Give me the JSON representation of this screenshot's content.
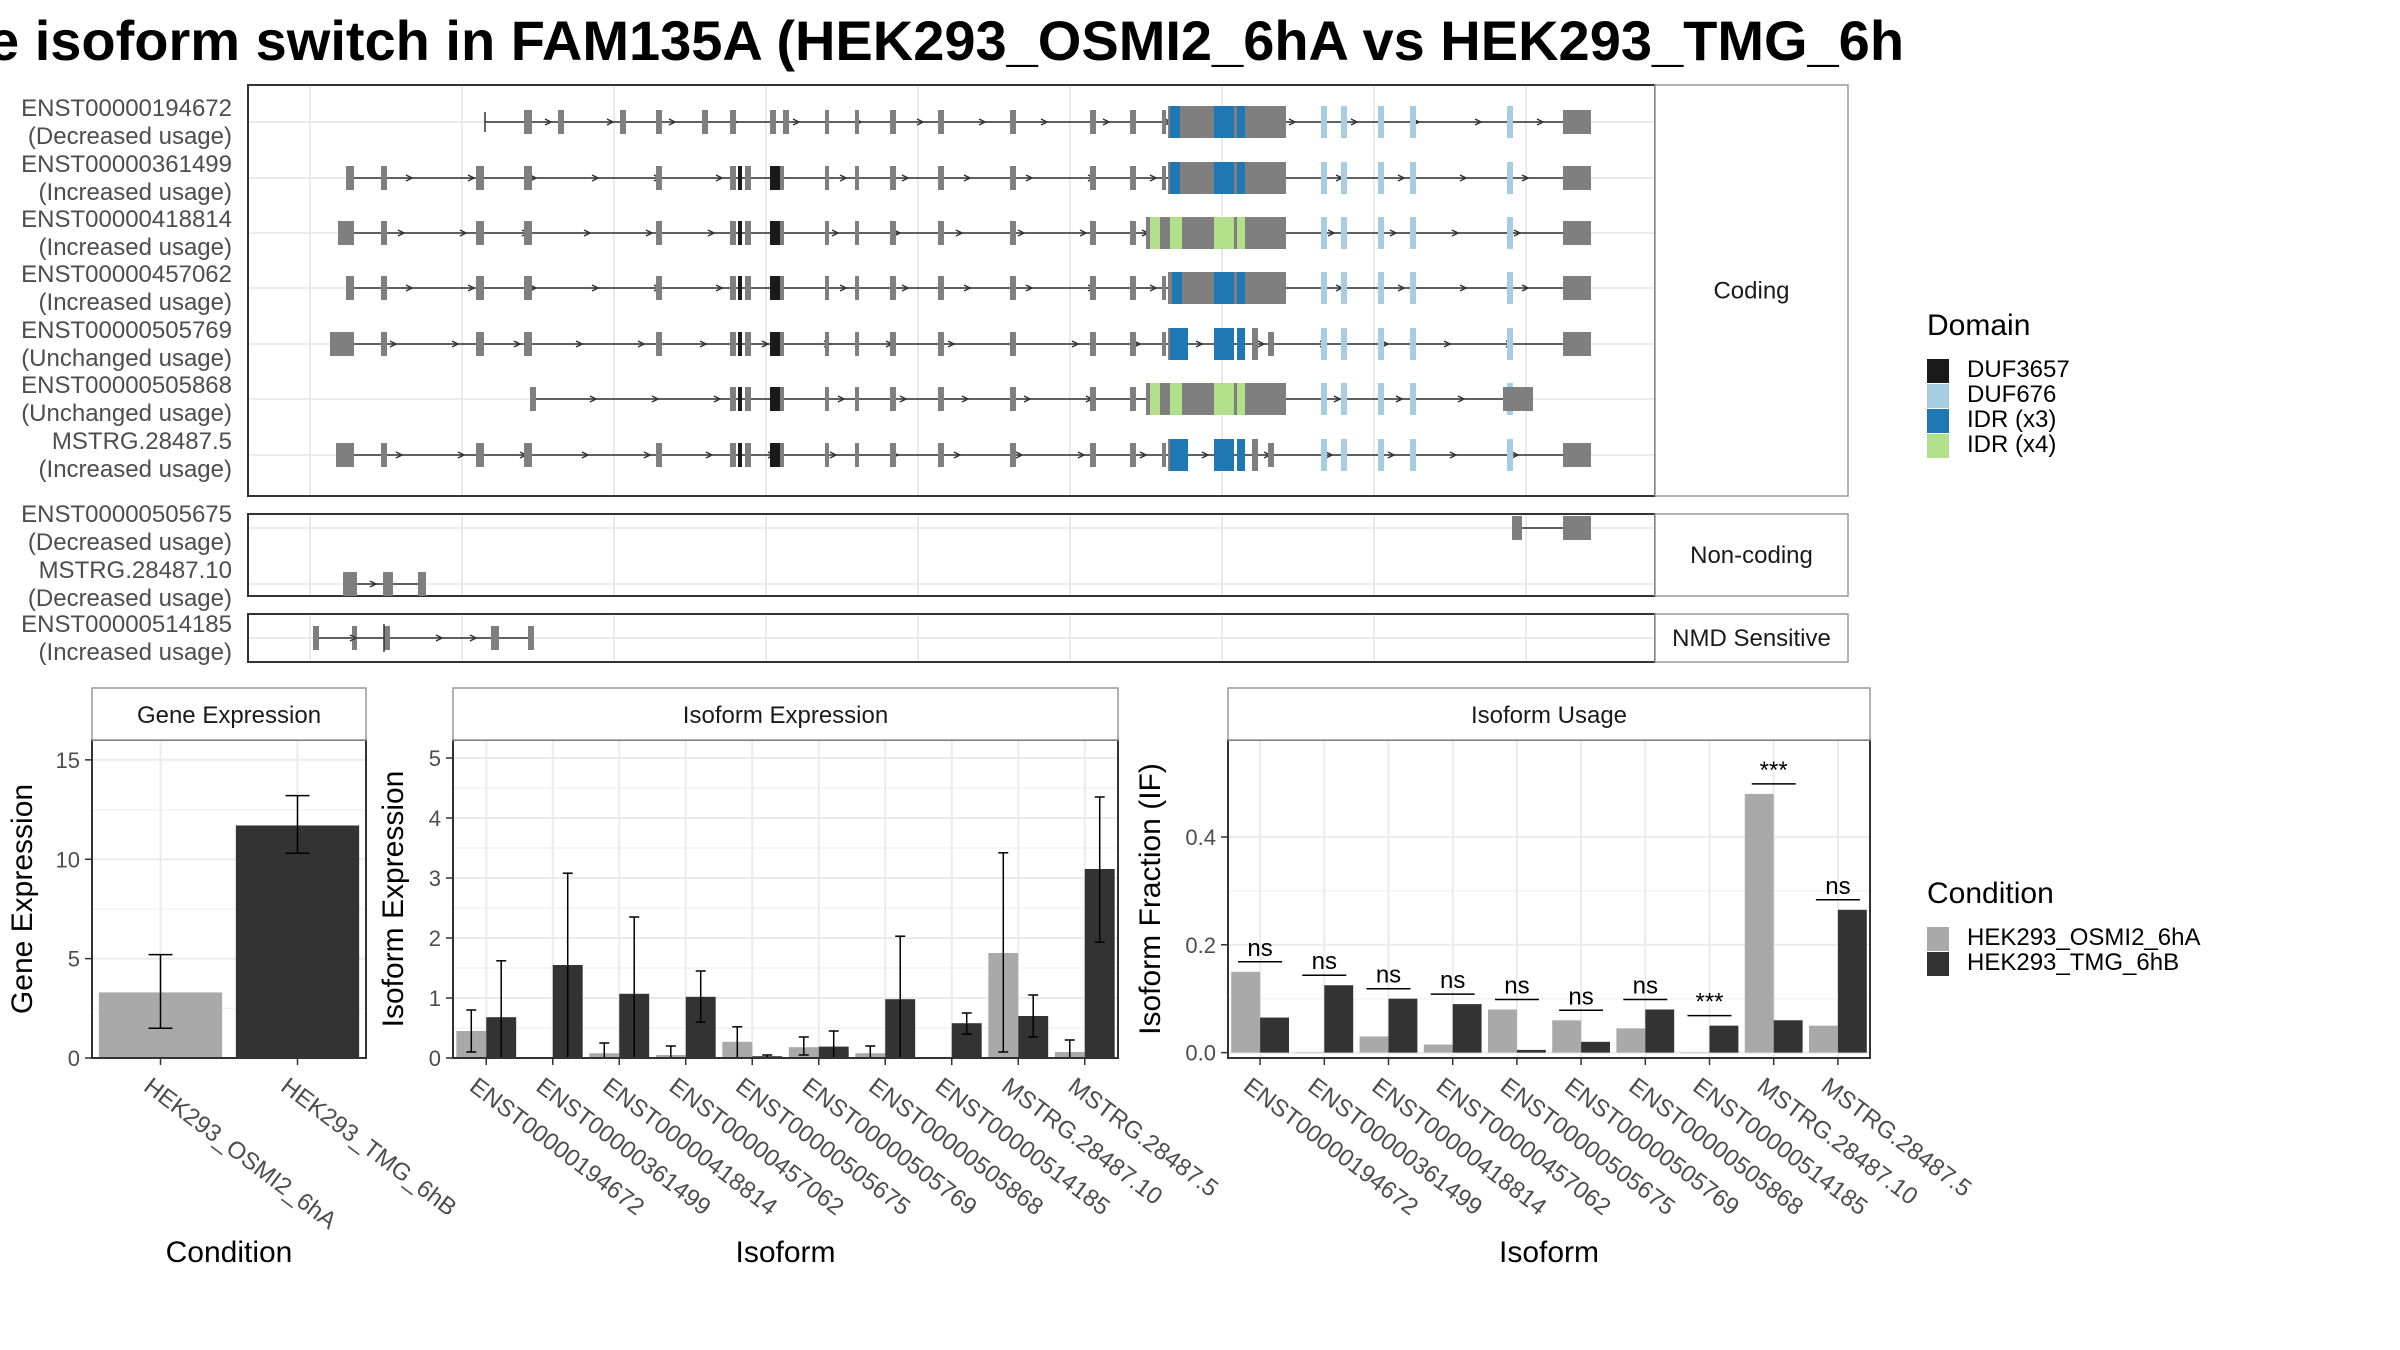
{
  "title": "e isoform switch in FAM135A (HEK293_OSMI2_6hA vs HEK293_TMG_6h",
  "colors": {
    "exon": "#7f7f7f",
    "DUF3657": "#1a1a1a",
    "DUF676": "#a6cee3",
    "IDR (x3)": "#1f78b4",
    "IDR (x4)": "#b2df8a",
    "HEK293_OSMI2_6hA": "#a9a9a9",
    "HEK293_TMG_6hB": "#333333"
  },
  "structure": {
    "panels": [
      {
        "label": "Coding",
        "isoforms": [
          {
            "id": "ENST00000194672",
            "usage": "(Decreased usage)"
          },
          {
            "id": "ENST00000361499",
            "usage": "(Increased usage)"
          },
          {
            "id": "ENST00000418814",
            "usage": "(Increased usage)"
          },
          {
            "id": "ENST00000457062",
            "usage": "(Increased usage)"
          },
          {
            "id": "ENST00000505769",
            "usage": "(Unchanged usage)"
          },
          {
            "id": "ENST00000505868",
            "usage": "(Unchanged usage)"
          },
          {
            "id": "MSTRG.28487.5",
            "usage": "(Increased usage)"
          }
        ]
      },
      {
        "label": "Non-coding",
        "isoforms": [
          {
            "id": "ENST00000505675",
            "usage": "(Decreased usage)"
          },
          {
            "id": "MSTRG.28487.10",
            "usage": "(Decreased usage)"
          }
        ]
      },
      {
        "label": "NMD Sensitive",
        "isoforms": [
          {
            "id": "ENST00000514185",
            "usage": "(Increased usage)"
          }
        ]
      }
    ]
  },
  "legends": {
    "domain": {
      "title": "Domain",
      "items": [
        "DUF3657",
        "DUF676",
        "IDR (x3)",
        "IDR (x4)"
      ]
    },
    "condition": {
      "title": "Condition",
      "items": [
        "HEK293_OSMI2_6hA",
        "HEK293_TMG_6hB"
      ]
    }
  },
  "chart_data": [
    {
      "type": "bar",
      "title": "Gene Expression",
      "xlabel": "Condition",
      "ylabel": "Gene Expression",
      "categories": [
        "HEK293_OSMI2_6hA",
        "HEK293_TMG_6hB"
      ],
      "values": [
        3.3,
        11.7
      ],
      "errors": [
        [
          1.5,
          5.2
        ],
        [
          10.3,
          13.2
        ]
      ],
      "ylim": [
        0,
        16
      ],
      "yticks": [
        0,
        5,
        10,
        15
      ]
    },
    {
      "type": "bar",
      "title": "Isoform Expression",
      "xlabel": "Isoform",
      "ylabel": "Isoform Expression",
      "categories": [
        "ENST00000194672",
        "ENST00000361499",
        "ENST00000418814",
        "ENST00000457062",
        "ENST00000505675",
        "ENST00000505769",
        "ENST00000505868",
        "ENST00000514185",
        "MSTRG.28487.10",
        "MSTRG.28487.5"
      ],
      "series": [
        {
          "name": "HEK293_OSMI2_6hA",
          "values": [
            0.45,
            0.0,
            0.08,
            0.05,
            0.27,
            0.18,
            0.08,
            0.0,
            1.75,
            0.1
          ],
          "errors": [
            [
              0.1,
              0.8
            ],
            [
              0,
              0
            ],
            [
              0,
              0.25
            ],
            [
              0,
              0.2
            ],
            [
              0,
              0.52
            ],
            [
              0.05,
              0.35
            ],
            [
              0,
              0.2
            ],
            [
              0,
              0
            ],
            [
              0.1,
              3.42
            ],
            [
              0,
              0.3
            ]
          ]
        },
        {
          "name": "HEK293_TMG_6hB",
          "values": [
            0.68,
            1.55,
            1.07,
            1.02,
            0.03,
            0.19,
            0.98,
            0.58,
            0.7,
            3.15
          ],
          "errors": [
            [
              0,
              1.62
            ],
            [
              0,
              3.08
            ],
            [
              0,
              2.35
            ],
            [
              0.6,
              1.45
            ],
            [
              0,
              0.05
            ],
            [
              0,
              0.45
            ],
            [
              0,
              2.03
            ],
            [
              0.4,
              0.75
            ],
            [
              0.35,
              1.05
            ],
            [
              1.93,
              4.35
            ]
          ]
        }
      ],
      "ylim": [
        0,
        5.3
      ],
      "yticks": [
        0,
        1,
        2,
        3,
        4,
        5
      ]
    },
    {
      "type": "bar",
      "title": "Isoform Usage",
      "xlabel": "Isoform",
      "ylabel": "Isoform Fraction (IF)",
      "categories": [
        "ENST00000194672",
        "ENST00000361499",
        "ENST00000418814",
        "ENST00000457062",
        "ENST00000505675",
        "ENST00000505769",
        "ENST00000505868",
        "ENST00000514185",
        "MSTRG.28487.10",
        "MSTRG.28487.5"
      ],
      "series": [
        {
          "name": "HEK293_OSMI2_6hA",
          "values": [
            0.15,
            0.0,
            0.03,
            0.015,
            0.08,
            0.06,
            0.045,
            0.0,
            0.48,
            0.05
          ]
        },
        {
          "name": "HEK293_TMG_6hB",
          "values": [
            0.065,
            0.125,
            0.1,
            0.09,
            0.005,
            0.02,
            0.08,
            0.05,
            0.06,
            0.265
          ]
        }
      ],
      "significance": [
        "ns",
        "ns",
        "ns",
        "ns",
        "ns",
        "ns",
        "ns",
        "***",
        "***",
        "ns"
      ],
      "ylim": [
        -0.01,
        0.58
      ],
      "yticks": [
        0.0,
        0.2,
        0.4
      ],
      "ytick_labels": [
        "0.0",
        "0.2",
        "0.4"
      ]
    }
  ]
}
